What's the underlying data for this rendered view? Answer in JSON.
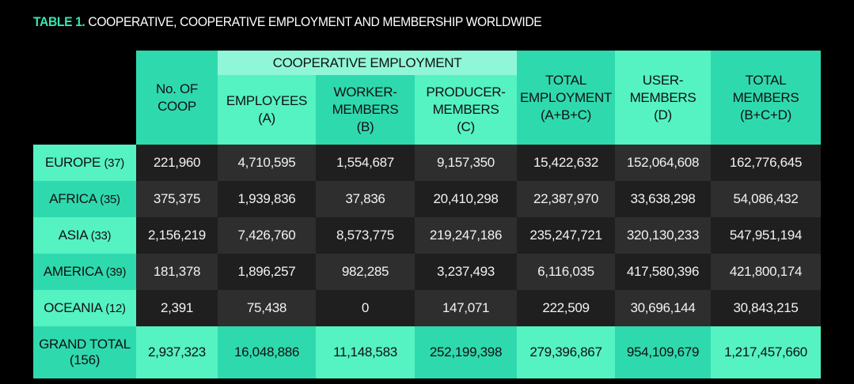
{
  "title": {
    "number": "TABLE 1.",
    "text": "COOPERATIVE, COOPERATIVE EMPLOYMENT AND MEMBERSHIP WORLDWIDE"
  },
  "header": {
    "no_coop": [
      "No. OF",
      "COOP"
    ],
    "group": "COOPERATIVE EMPLOYMENT",
    "employees": [
      "EMPLOYEES",
      "(A)"
    ],
    "worker_members": [
      "WORKER-",
      "MEMBERS",
      "(B)"
    ],
    "producer_members": [
      "PRODUCER-",
      "MEMBERS",
      "(C)"
    ],
    "total_employment": [
      "TOTAL",
      "EMPLOYMENT",
      "(A+B+C)"
    ],
    "user_members": [
      "USER-",
      "MEMBERS",
      "(D)"
    ],
    "total_members": [
      "TOTAL MEMBERS",
      "(B+C+D)"
    ]
  },
  "rows": [
    {
      "region": "EUROPE",
      "count": "(37)",
      "values": [
        "221,960",
        "4,710,595",
        "1,554,687",
        "9,157,350",
        "15,422,632",
        "152,064,608",
        "162,776,645"
      ]
    },
    {
      "region": "AFRICA",
      "count": "(35)",
      "values": [
        "375,375",
        "1,939,836",
        "37,836",
        "20,410,298",
        "22,387,970",
        "33,638,298",
        "54,086,432"
      ]
    },
    {
      "region": "ASIA",
      "count": "(33)",
      "values": [
        "2,156,219",
        "7,426,760",
        "8,573,775",
        "219,247,186",
        "235,247,721",
        "320,130,233",
        "547,951,194"
      ]
    },
    {
      "region": "AMERICA",
      "count": "(39)",
      "values": [
        "181,378",
        "1,896,257",
        "982,285",
        "3,237,493",
        "6,116,035",
        "417,580,396",
        "421,800,174"
      ]
    },
    {
      "region": "OCEANIA",
      "count": "(12)",
      "values": [
        "2,391",
        "75,438",
        "0",
        "147,071",
        "222,509",
        "30,696,144",
        "30,843,215"
      ]
    }
  ],
  "grand_total": {
    "label": [
      "GRAND TOTAL",
      "(156)"
    ],
    "values": [
      "2,937,323",
      "16,048,886",
      "11,148,583",
      "252,199,398",
      "279,396,867",
      "954,109,679",
      "1,217,457,660"
    ]
  },
  "colors": {
    "teal": "#2fd9ae",
    "light_green": "#55f2c2",
    "pale_green": "#8ff7d8",
    "dark_cell": "#1f1f1f",
    "darker_cell": "#2e2e2e",
    "title_accent": "#34e7b4"
  }
}
